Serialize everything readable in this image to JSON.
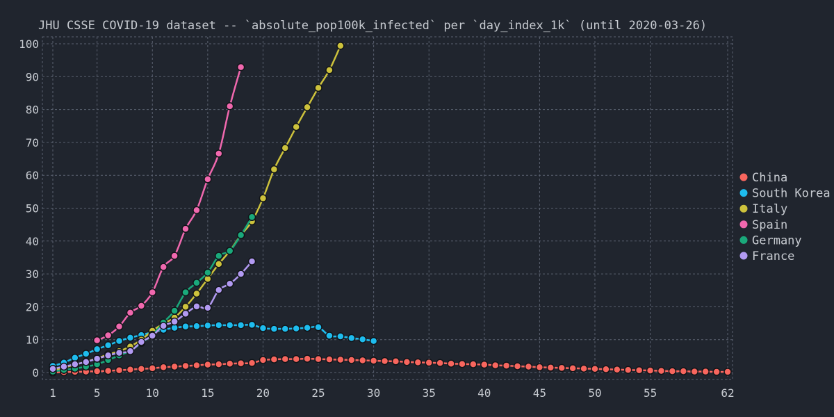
{
  "chart_data": {
    "type": "line",
    "title": "JHU CSSE COVID-19 dataset -- `absolute_pop100k_infected` per `day_index_1k` (until 2020-03-26)",
    "xlabel": "",
    "ylabel": "",
    "xlim": [
      1,
      62
    ],
    "ylim": [
      0,
      100
    ],
    "x_ticks": [
      1,
      5,
      10,
      15,
      20,
      25,
      30,
      35,
      40,
      45,
      50,
      55,
      62
    ],
    "y_ticks": [
      0,
      10,
      20,
      30,
      40,
      50,
      60,
      70,
      80,
      90,
      100
    ],
    "grid": true,
    "legend": "right",
    "series": [
      {
        "name": "China",
        "color": "#f8665e",
        "x": [
          1,
          2,
          3,
          4,
          5,
          6,
          7,
          8,
          9,
          10,
          11,
          12,
          13,
          14,
          15,
          16,
          17,
          18,
          19,
          20,
          21,
          22,
          23,
          24,
          25,
          26,
          27,
          28,
          29,
          30,
          31,
          32,
          33,
          34,
          35,
          36,
          37,
          38,
          39,
          40,
          41,
          42,
          43,
          44,
          45,
          46,
          47,
          48,
          49,
          50,
          51,
          52,
          53,
          54,
          55,
          56,
          57,
          58,
          59,
          60,
          61,
          62
        ],
        "y": [
          0.0,
          0.1,
          0.2,
          0.3,
          0.4,
          0.5,
          0.7,
          0.9,
          1.1,
          1.3,
          1.6,
          1.8,
          2.0,
          2.2,
          2.4,
          2.5,
          2.7,
          2.8,
          2.9,
          3.8,
          4.0,
          4.1,
          4.1,
          4.2,
          4.1,
          4.0,
          3.9,
          3.8,
          3.7,
          3.6,
          3.5,
          3.4,
          3.2,
          3.1,
          3.0,
          2.9,
          2.7,
          2.6,
          2.5,
          2.4,
          2.2,
          2.1,
          1.9,
          1.8,
          1.6,
          1.5,
          1.4,
          1.3,
          1.2,
          1.1,
          1.0,
          0.9,
          0.8,
          0.7,
          0.6,
          0.5,
          0.4,
          0.4,
          0.3,
          0.3,
          0.2,
          0.2
        ]
      },
      {
        "name": "South Korea",
        "color": "#1ebcee",
        "x": [
          1,
          2,
          3,
          4,
          5,
          6,
          7,
          8,
          9,
          10,
          11,
          12,
          13,
          14,
          15,
          16,
          17,
          18,
          19,
          20,
          21,
          22,
          23,
          24,
          25,
          26,
          27,
          28,
          29,
          30
        ],
        "y": [
          2.0,
          3.0,
          4.5,
          5.7,
          7.1,
          8.3,
          9.6,
          10.6,
          11.4,
          12.3,
          13.0,
          13.6,
          14.0,
          14.1,
          14.3,
          14.4,
          14.4,
          14.4,
          14.5,
          13.5,
          13.3,
          13.3,
          13.4,
          13.6,
          13.8,
          11.2,
          11.0,
          10.5,
          10.1,
          9.6
        ]
      },
      {
        "name": "Italy",
        "color": "#cdc23c",
        "x": [
          1,
          2,
          3,
          4,
          5,
          6,
          7,
          8,
          9,
          10,
          11,
          12,
          13,
          14,
          15,
          16,
          17,
          18,
          19,
          20,
          21,
          22,
          23,
          24,
          25,
          26,
          27
        ],
        "y": [
          0.6,
          1.5,
          2.4,
          3.3,
          4.3,
          5.5,
          6.5,
          7.9,
          10.0,
          12.7,
          14.9,
          16.7,
          20.0,
          24.0,
          28.5,
          33.0,
          37.0,
          41.8,
          46.0,
          53.0,
          61.8,
          68.3,
          74.7,
          80.7,
          86.6,
          92.0,
          99.4
        ]
      },
      {
        "name": "Spain",
        "color": "#f068ae",
        "x": [
          5,
          6,
          7,
          8,
          9,
          10,
          11,
          12,
          13,
          14,
          15,
          16,
          17,
          18
        ],
        "y": [
          9.8,
          11.3,
          14.0,
          18.2,
          20.3,
          24.4,
          32.1,
          35.5,
          43.7,
          49.4,
          58.8,
          66.6,
          81.0,
          92.9
        ]
      },
      {
        "name": "Germany",
        "color": "#1aa97b",
        "x": [
          1,
          2,
          3,
          4,
          5,
          6,
          7,
          8,
          9,
          10,
          11,
          12,
          13,
          14,
          15,
          16,
          17,
          18,
          19
        ],
        "y": [
          0.3,
          0.8,
          1.2,
          1.8,
          2.5,
          3.8,
          5.2,
          6.6,
          9.0,
          11.5,
          15.2,
          18.8,
          24.4,
          27.3,
          30.4,
          35.5,
          37.0,
          41.8,
          47.3
        ]
      },
      {
        "name": "France",
        "color": "#b29af2",
        "x": [
          1,
          2,
          3,
          4,
          5,
          6,
          7,
          8,
          9,
          10,
          11,
          12,
          13,
          14,
          15,
          16,
          17,
          18,
          19
        ],
        "y": [
          1.1,
          1.8,
          2.5,
          3.2,
          4.2,
          5.2,
          6.0,
          6.5,
          9.3,
          11.2,
          14.2,
          15.5,
          17.9,
          20.1,
          19.7,
          25.1,
          27.0,
          30.0,
          33.8
        ]
      }
    ]
  }
}
